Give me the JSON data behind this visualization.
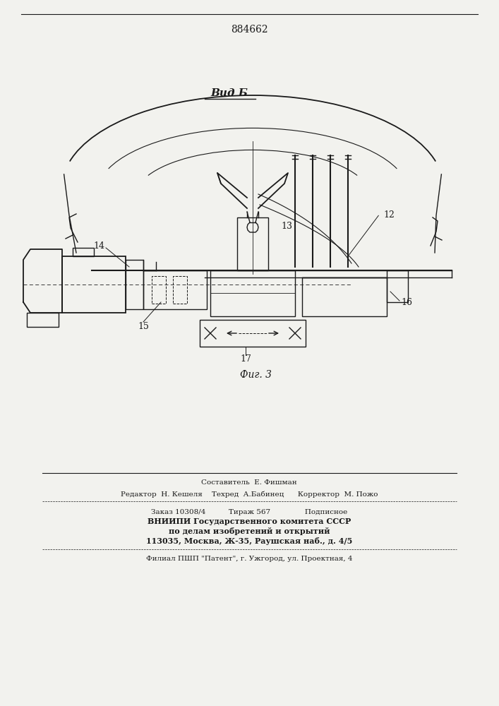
{
  "patent_number": "884662",
  "title_view": "Вид Б",
  "figure_label": "Фиг. 3",
  "bg_color": "#f2f2ee",
  "line_color": "#1a1a1a",
  "footer_lines": [
    "Составитель  Е. Фишман",
    "Редактор  Н. Кешеля    Техред  А.Бабинец      Корректор  М. Пожо",
    "Заказ 10308/4          Тираж 567               Подписное",
    "ВНИИПИ Государственного комитета СССР",
    "по делам изобретений и открытий",
    "113035, Москва, Ж-35, Раушская наб., д. 4/5",
    "Филиал ПШП \"Патент\", г. Ужгород, ул. Проектная, 4"
  ]
}
